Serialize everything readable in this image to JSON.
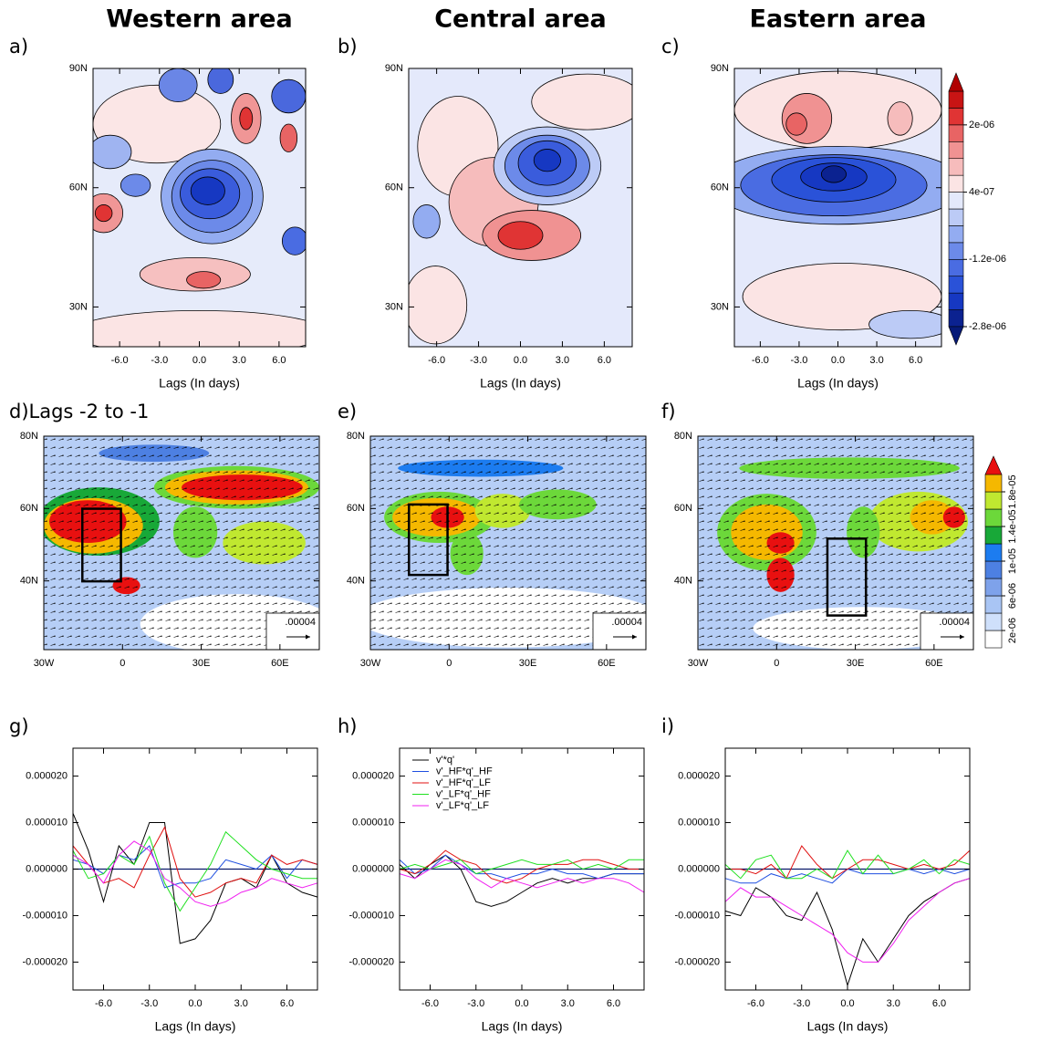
{
  "chart_data": [
    {
      "type": "contour",
      "panel_label": "a)",
      "title": "Western area",
      "xlabel": "Lags (In days)",
      "xlim": [
        -8,
        8
      ],
      "xticks": [
        {
          "value": -6,
          "label": "-6.0"
        },
        {
          "value": -3,
          "label": "-3.0"
        },
        {
          "value": 0,
          "label": "0.0"
        },
        {
          "value": 3,
          "label": "3.0"
        },
        {
          "value": 6,
          "label": "6.0"
        }
      ],
      "ylim": [
        20,
        90
      ],
      "yticks": [
        {
          "value": 30,
          "label": "30N"
        },
        {
          "value": 60,
          "label": "60N"
        },
        {
          "value": 90,
          "label": "90N"
        }
      ]
    },
    {
      "type": "contour",
      "panel_label": "b)",
      "title": "Central area",
      "xlabel": "Lags (In days)",
      "xlim": [
        -8,
        8
      ],
      "xticks": [
        {
          "value": -6,
          "label": "-6.0"
        },
        {
          "value": -3,
          "label": "-3.0"
        },
        {
          "value": 0,
          "label": "0.0"
        },
        {
          "value": 3,
          "label": "3.0"
        },
        {
          "value": 6,
          "label": "6.0"
        }
      ],
      "ylim": [
        20,
        90
      ],
      "yticks": [
        {
          "value": 30,
          "label": "30N"
        },
        {
          "value": 60,
          "label": "60N"
        },
        {
          "value": 90,
          "label": "90N"
        }
      ]
    },
    {
      "type": "contour",
      "panel_label": "c)",
      "title": "Eastern area",
      "xlabel": "Lags (In days)",
      "xlim": [
        -8,
        8
      ],
      "xticks": [
        {
          "value": -6,
          "label": "-6.0"
        },
        {
          "value": -3,
          "label": "-3.0"
        },
        {
          "value": 0,
          "label": "0.0"
        },
        {
          "value": 3,
          "label": "3.0"
        },
        {
          "value": 6,
          "label": "6.0"
        }
      ],
      "ylim": [
        20,
        90
      ],
      "yticks": [
        {
          "value": 30,
          "label": "30N"
        },
        {
          "value": 60,
          "label": "60N"
        },
        {
          "value": 90,
          "label": "90N"
        }
      ],
      "colorbar": {
        "lim": [
          -2.8e-06,
          2.8e-06
        ],
        "colors": [
          "#0b2290",
          "#1638c2",
          "#2a52d8",
          "#4a6ce2",
          "#6c8ae9",
          "#93acf1",
          "#bccbf6",
          "#e4e9fb",
          "#fbe4e4",
          "#f6bcbc",
          "#f09292",
          "#e86464",
          "#e03434",
          "#c81414"
        ],
        "under_color": "#061a78",
        "over_color": "#b00000",
        "ticks": [
          {
            "value": 2e-06,
            "label": "2e-06"
          },
          {
            "value": 4e-07,
            "label": "4e-07"
          },
          {
            "value": -1.2e-06,
            "label": "-1.2e-06"
          },
          {
            "value": -2.8e-06,
            "label": "-2.8e-06"
          }
        ]
      }
    },
    {
      "type": "vector_map",
      "panel_label": "d)Lags -2 to -1",
      "xlim": [
        -30,
        75
      ],
      "xticks": [
        {
          "value": -30,
          "label": "30W"
        },
        0,
        {
          "value": 30,
          "label": "30E"
        },
        {
          "value": 60,
          "label": "60E"
        }
      ],
      "ylim": [
        21,
        80
      ],
      "yticks": [
        {
          "value": 40,
          "label": "40N"
        },
        {
          "value": 60,
          "label": "60N"
        },
        {
          "value": 80,
          "label": "80N"
        }
      ],
      "reference_vector": {
        "value": 4e-05,
        "label": ".00004"
      }
    },
    {
      "type": "vector_map",
      "panel_label": "e)",
      "xlim": [
        -30,
        75
      ],
      "xticks": [
        {
          "value": -30,
          "label": "30W"
        },
        0,
        {
          "value": 30,
          "label": "30E"
        },
        {
          "value": 60,
          "label": "60E"
        }
      ],
      "ylim": [
        21,
        80
      ],
      "yticks": [
        {
          "value": 40,
          "label": "40N"
        },
        {
          "value": 60,
          "label": "60N"
        },
        {
          "value": 80,
          "label": "80N"
        }
      ],
      "reference_vector": {
        "value": 4e-05,
        "label": ".00004"
      }
    },
    {
      "type": "vector_map",
      "panel_label": "f)",
      "xlim": [
        -30,
        75
      ],
      "xticks": [
        {
          "value": -30,
          "label": "30W"
        },
        0,
        {
          "value": 30,
          "label": "30E"
        },
        {
          "value": 60,
          "label": "60E"
        }
      ],
      "ylim": [
        21,
        80
      ],
      "yticks": [
        {
          "value": 40,
          "label": "40N"
        },
        {
          "value": 60,
          "label": "60N"
        },
        {
          "value": 80,
          "label": "80N"
        }
      ],
      "reference_vector": {
        "value": 4e-05,
        "label": ".00004"
      },
      "colorbar": {
        "lim": [
          0,
          2e-05
        ],
        "colors": [
          "#ffffff",
          "#cfe0fb",
          "#a9c5f4",
          "#7ea2ea",
          "#4d80e2",
          "#1c7cf0",
          "#18a838",
          "#6cd83a",
          "#c0e830",
          "#f5b800"
        ],
        "under_color": "#ffffff",
        "over_color": "#e81010",
        "ticks": [
          {
            "value": 2e-06,
            "label": "2e-06"
          },
          {
            "value": 6e-06,
            "label": "6e-06"
          },
          {
            "value": 1e-05,
            "label": "1e-05"
          },
          {
            "value": 1.4e-05,
            "label": "1.4e-05"
          },
          {
            "value": 1.8e-05,
            "label": "1.8e-05"
          }
        ]
      }
    },
    {
      "type": "line",
      "panel_label": "g)",
      "xlabel": "Lags (In days)",
      "xlim": [
        -8,
        8
      ],
      "xticks": [
        {
          "value": -6,
          "label": "-6.0"
        },
        {
          "value": -3,
          "label": "-3.0"
        },
        {
          "value": 0,
          "label": "0.0"
        },
        {
          "value": 3,
          "label": "3.0"
        },
        {
          "value": 6,
          "label": "6.0"
        }
      ],
      "ylim": [
        -2.6e-05,
        2.6e-05
      ],
      "yticks": [
        {
          "value": -2e-05,
          "label": "-0.000020"
        },
        {
          "value": -1e-05,
          "label": "-0.000010"
        },
        {
          "value": 0,
          "label": "0.000000"
        },
        {
          "value": 1e-05,
          "label": "0.000010"
        },
        {
          "value": 2e-05,
          "label": "0.000020"
        }
      ],
      "x": [
        -8,
        -7,
        -6,
        -5,
        -4,
        -3,
        -2,
        -1,
        0,
        1,
        2,
        3,
        4,
        5,
        6,
        7,
        8
      ],
      "series": [
        {
          "color": "#000000",
          "values": [
            1.2e-05,
            4e-06,
            -7e-06,
            5e-06,
            1e-06,
            1e-05,
            1e-05,
            -1.6e-05,
            -1.5e-05,
            -1.1e-05,
            -3e-06,
            -2e-06,
            -4e-06,
            3e-06,
            -3e-06,
            -5e-06,
            -6e-06
          ]
        },
        {
          "color": "#1f4fe0",
          "values": [
            2e-06,
            1e-06,
            -1e-06,
            3e-06,
            2e-06,
            5e-06,
            -4e-06,
            -3e-06,
            -3e-06,
            -2e-06,
            2e-06,
            1e-06,
            0,
            3e-06,
            -2e-06,
            2e-06,
            1e-06
          ]
        },
        {
          "color": "#e01010",
          "values": [
            5e-06,
            1e-06,
            -3e-06,
            -2e-06,
            -4e-06,
            3e-06,
            9e-06,
            -2e-06,
            -6e-06,
            -5e-06,
            -3e-06,
            -2e-06,
            -3e-06,
            3e-06,
            1e-06,
            2e-06,
            1e-06
          ]
        },
        {
          "color": "#20e020",
          "values": [
            4e-06,
            -2e-06,
            -1e-06,
            3e-06,
            1e-06,
            7e-06,
            -3e-06,
            -9e-06,
            -4e-06,
            1e-06,
            8e-06,
            5e-06,
            2e-06,
            0,
            -1e-06,
            -2e-06,
            -2e-06
          ]
        },
        {
          "color": "#f020f0",
          "values": [
            3e-06,
            1e-06,
            -3e-06,
            3e-06,
            6e-06,
            4e-06,
            -2e-06,
            -4e-06,
            -7e-06,
            -8e-06,
            -7e-06,
            -5e-06,
            -4e-06,
            -2e-06,
            -3e-06,
            -4e-06,
            -3e-06
          ]
        }
      ]
    },
    {
      "type": "line",
      "panel_label": "h)",
      "xlabel": "Lags (In days)",
      "legend": "upper left",
      "xlim": [
        -8,
        8
      ],
      "xticks": [
        {
          "value": -6,
          "label": "-6.0"
        },
        {
          "value": -3,
          "label": "-3.0"
        },
        {
          "value": 0,
          "label": "0.0"
        },
        {
          "value": 3,
          "label": "3.0"
        },
        {
          "value": 6,
          "label": "6.0"
        }
      ],
      "ylim": [
        -2.6e-05,
        2.6e-05
      ],
      "yticks": [
        {
          "value": -2e-05,
          "label": "-0.000020"
        },
        {
          "value": -1e-05,
          "label": "-0.000010"
        },
        {
          "value": 0,
          "label": "0.000000"
        },
        {
          "value": 1e-05,
          "label": "0.000010"
        },
        {
          "value": 2e-05,
          "label": "0.000020"
        }
      ],
      "x": [
        -8,
        -7,
        -6,
        -5,
        -4,
        -3,
        -2,
        -1,
        0,
        1,
        2,
        3,
        4,
        5,
        6,
        7,
        8
      ],
      "series": [
        {
          "name": "v'*q'",
          "color": "#000000",
          "values": [
            1e-06,
            -2e-06,
            1e-06,
            3e-06,
            0,
            -7e-06,
            -8e-06,
            -7e-06,
            -5e-06,
            -3e-06,
            -2e-06,
            -3e-06,
            -2e-06,
            -2e-06,
            -1e-06,
            -1e-06,
            -1e-06
          ]
        },
        {
          "name": "v'_HF*q'_HF",
          "color": "#1f4fe0",
          "values": [
            2e-06,
            -1e-06,
            0,
            3e-06,
            1e-06,
            -1e-06,
            -1e-06,
            -2e-06,
            -1e-06,
            -1e-06,
            0,
            -1e-06,
            -1e-06,
            -2e-06,
            -1e-06,
            -1e-06,
            -1e-06
          ]
        },
        {
          "name": "v'_HF*q'_LF",
          "color": "#e01010",
          "values": [
            0,
            -1e-06,
            1e-06,
            4e-06,
            2e-06,
            1e-06,
            -2e-06,
            -3e-06,
            -2e-06,
            0,
            1e-06,
            1e-06,
            2e-06,
            2e-06,
            1e-06,
            0,
            0
          ]
        },
        {
          "name": "v'_LF*q'_HF",
          "color": "#20e020",
          "values": [
            0,
            1e-06,
            0,
            1e-06,
            2e-06,
            -1e-06,
            0,
            1e-06,
            2e-06,
            1e-06,
            1e-06,
            2e-06,
            0,
            1e-06,
            0,
            2e-06,
            2e-06
          ]
        },
        {
          "name": "v'_LF*q'_LF",
          "color": "#f020f0",
          "values": [
            -1e-06,
            -2e-06,
            0,
            2e-06,
            1e-06,
            -2e-06,
            -4e-06,
            -2e-06,
            -3e-06,
            -4e-06,
            -3e-06,
            -2e-06,
            -3e-06,
            -2e-06,
            -2e-06,
            -3e-06,
            -5e-06
          ]
        }
      ]
    },
    {
      "type": "line",
      "panel_label": "i)",
      "xlabel": "Lags (In days)",
      "xlim": [
        -8,
        8
      ],
      "xticks": [
        {
          "value": -6,
          "label": "-6.0"
        },
        {
          "value": -3,
          "label": "-3.0"
        },
        {
          "value": 0,
          "label": "0.0"
        },
        {
          "value": 3,
          "label": "3.0"
        },
        {
          "value": 6,
          "label": "6.0"
        }
      ],
      "ylim": [
        -2.6e-05,
        2.6e-05
      ],
      "yticks": [
        {
          "value": -2e-05,
          "label": "-0.000020"
        },
        {
          "value": -1e-05,
          "label": "-0.000010"
        },
        {
          "value": 0,
          "label": "0.000000"
        },
        {
          "value": 1e-05,
          "label": "0.000010"
        },
        {
          "value": 2e-05,
          "label": "0.000020"
        }
      ],
      "x": [
        -8,
        -7,
        -6,
        -5,
        -4,
        -3,
        -2,
        -1,
        0,
        1,
        2,
        3,
        4,
        5,
        6,
        7,
        8
      ],
      "series": [
        {
          "color": "#000000",
          "values": [
            -9e-06,
            -1e-05,
            -4e-06,
            -6e-06,
            -1e-05,
            -1.1e-05,
            -5e-06,
            -1.3e-05,
            -2.5e-05,
            -1.5e-05,
            -2e-05,
            -1.5e-05,
            -1e-05,
            -7e-06,
            -5e-06,
            -3e-06,
            -2e-06
          ]
        },
        {
          "color": "#1f4fe0",
          "values": [
            -2e-06,
            -3e-06,
            -3e-06,
            -1e-06,
            -2e-06,
            -1e-06,
            -2e-06,
            -3e-06,
            0,
            -1e-06,
            -1e-06,
            -1e-06,
            0,
            -1e-06,
            0,
            -1e-06,
            0
          ]
        },
        {
          "color": "#e01010",
          "values": [
            0,
            0,
            -1e-06,
            1e-06,
            -2e-06,
            5e-06,
            1e-06,
            -2e-06,
            0,
            2e-06,
            2e-06,
            1e-06,
            0,
            1e-06,
            0,
            1e-06,
            4e-06
          ]
        },
        {
          "color": "#20e020",
          "values": [
            1e-06,
            -2e-06,
            2e-06,
            3e-06,
            -2e-06,
            -2e-06,
            0,
            -2e-06,
            4e-06,
            -1e-06,
            3e-06,
            -1e-06,
            0,
            2e-06,
            -1e-06,
            2e-06,
            1e-06
          ]
        },
        {
          "color": "#f020f0",
          "values": [
            -7e-06,
            -4e-06,
            -6e-06,
            -6e-06,
            -8e-06,
            -1e-05,
            -1.2e-05,
            -1.4e-05,
            -1.8e-05,
            -2e-05,
            -2e-05,
            -1.6e-05,
            -1.1e-05,
            -8e-06,
            -5e-06,
            -3e-06,
            -2e-06
          ]
        }
      ]
    }
  ]
}
